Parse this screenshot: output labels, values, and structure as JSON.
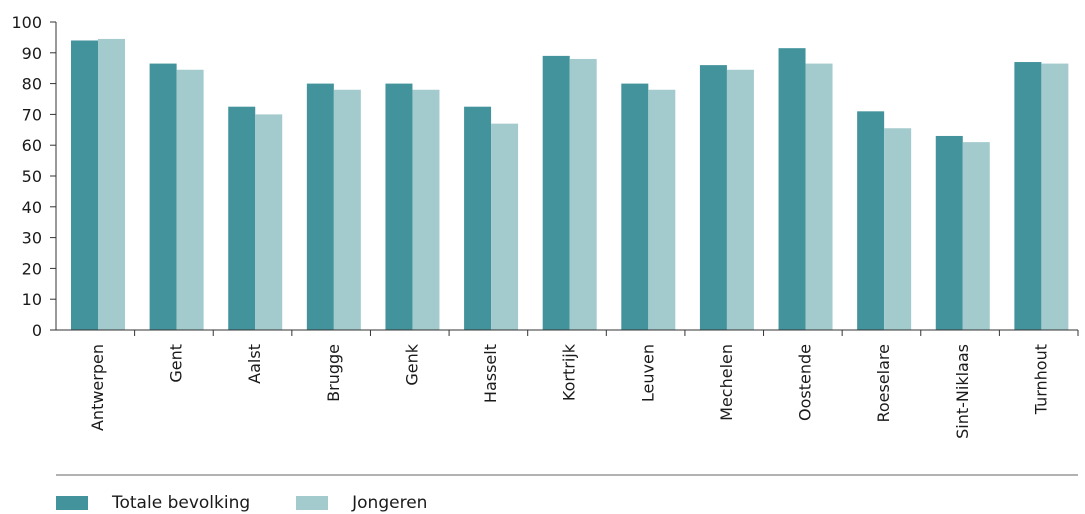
{
  "chart_data": {
    "type": "bar",
    "categories": [
      "Antwerpen",
      "Gent",
      "Aalst",
      "Brugge",
      "Genk",
      "Hasselt",
      "Kortrijk",
      "Leuven",
      "Mechelen",
      "Oostende",
      "Roeselare",
      "Sint-Niklaas",
      "Turnhout"
    ],
    "series": [
      {
        "name": "Totale bevolking",
        "color": "#43939c",
        "values": [
          94,
          86.5,
          72.5,
          80,
          80,
          72.5,
          89,
          80,
          86,
          91.5,
          71,
          63,
          87
        ]
      },
      {
        "name": "Jongeren",
        "color": "#a3cbce",
        "values": [
          94.5,
          84.5,
          70,
          78,
          78,
          67,
          88,
          78,
          84.5,
          86.5,
          65.5,
          61,
          86.5
        ]
      }
    ],
    "yticks": [
      "0",
      "10",
      "20",
      "30",
      "40",
      "50",
      "60",
      "70",
      "80",
      "90",
      "100"
    ],
    "ylim": [
      0,
      100
    ],
    "title": "",
    "xlabel": "",
    "ylabel": "",
    "grid": false,
    "legend_position": "bottom-left"
  }
}
